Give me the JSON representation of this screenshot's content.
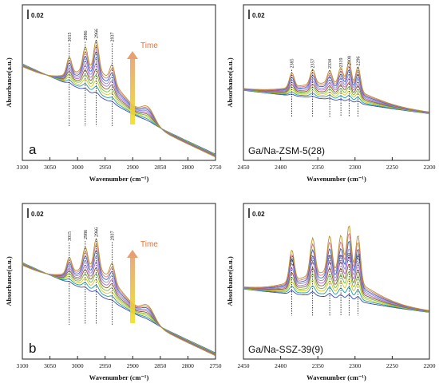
{
  "panels": [
    {
      "id": "a",
      "letter": "a",
      "sample": "",
      "scale_label": "0.02",
      "show_time": true,
      "time_label": "Time",
      "chart_data": {
        "type": "line",
        "xlabel": "Wavenumber (cm⁻¹)",
        "ylabel": "Absorbance(a.u.)",
        "xlim": [
          3100,
          2750
        ],
        "xticks": [
          3100,
          3050,
          3000,
          2950,
          2900,
          2850,
          2800,
          2750
        ],
        "peaks": [
          3015,
          2986,
          2966,
          2937
        ],
        "series_count": 10,
        "peak_heights_max": [
          0.55,
          0.75,
          1.0,
          0.55
        ],
        "grid": false,
        "legend": "none"
      }
    },
    {
      "id": "b",
      "letter": "",
      "sample": "Ga/Na-ZSM-5(28)",
      "scale_label": "0.02",
      "show_time": false,
      "time_label": "",
      "chart_data": {
        "type": "line",
        "xlabel": "Wavenumber (cm⁻¹)",
        "ylabel": "Absorbance(a.u.)",
        "xlim": [
          2450,
          2200
        ],
        "xticks": [
          2450,
          2400,
          2350,
          2300,
          2250,
          2200
        ],
        "peaks": [
          2385,
          2357,
          2334,
          2319,
          2308,
          2296
        ],
        "series_count": 10,
        "peak_heights_max": [
          0.45,
          0.45,
          0.4,
          0.55,
          0.8,
          0.75
        ],
        "grid": false,
        "legend": "none"
      }
    },
    {
      "id": "c",
      "letter": "b",
      "sample": "",
      "scale_label": "0.02",
      "show_time": true,
      "time_label": "Time",
      "chart_data": {
        "type": "line",
        "xlabel": "Wavenumber (cm⁻¹)",
        "ylabel": "Absorbance(a.u.)",
        "xlim": [
          3100,
          2750
        ],
        "xticks": [
          3100,
          3050,
          3000,
          2950,
          2900,
          2850,
          2800,
          2750
        ],
        "peaks": [
          3015,
          2986,
          2966,
          2937
        ],
        "series_count": 10,
        "peak_heights_max": [
          0.5,
          0.7,
          1.0,
          0.55
        ],
        "grid": false,
        "legend": "none"
      }
    },
    {
      "id": "d",
      "letter": "",
      "sample": "Ga/Na-SSZ-39(9)",
      "scale_label": "0.02",
      "show_time": false,
      "time_label": "",
      "chart_data": {
        "type": "line",
        "xlabel": "Wavenumber (cm⁻¹)",
        "ylabel": "Absorbance(a.u.)",
        "xlim": [
          2450,
          2200
        ],
        "xticks": [
          2450,
          2400,
          2350,
          2300,
          2250,
          2200
        ],
        "peaks": [
          2385,
          2357,
          2334,
          2319,
          2308,
          2296
        ],
        "series_count": 10,
        "peak_heights_max": [
          0.6,
          0.7,
          0.7,
          0.75,
          1.0,
          0.9
        ],
        "grid": false,
        "legend": "none"
      }
    }
  ],
  "series_colors": [
    "#4a2a10",
    "#b01818",
    "#3a48c8",
    "#19a0a0",
    "#d8c818",
    "#6dbb3a",
    "#8c5a2a",
    "#b06ac8",
    "#8c8cd8",
    "#3a60c0",
    "#d87878",
    "#b8902a"
  ]
}
